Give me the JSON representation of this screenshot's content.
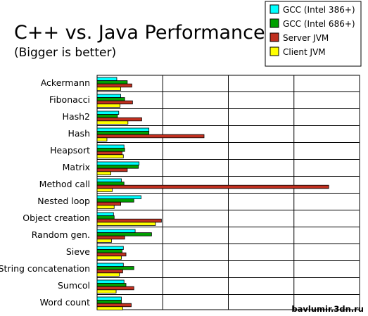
{
  "watermark": "bavlumir.3dn.ru",
  "chart_data": {
    "type": "bar",
    "orientation": "horizontal",
    "title": "C++ vs. Java Performance",
    "subtitle": "(Bigger is better)",
    "xlim": [
      0,
      4
    ],
    "grid": true,
    "legend_position": "top-right",
    "categories": [
      "Ackermann",
      "Fibonacci",
      "Hash2",
      "Hash",
      "Heapsort",
      "Matrix",
      "Method call",
      "Nested loop",
      "Object creation",
      "Random gen.",
      "Sieve",
      "String concatenation",
      "Sumcol",
      "Word count"
    ],
    "series": [
      {
        "name": "GCC (Intel 386+)",
        "color": "#00ffff",
        "values": [
          0.3,
          0.36,
          0.33,
          0.79,
          0.41,
          0.64,
          0.37,
          0.67,
          0.25,
          0.58,
          0.4,
          0.4,
          0.41,
          0.37
        ]
      },
      {
        "name": "GCC (Intel 686+)",
        "color": "#00a000",
        "values": [
          0.46,
          0.42,
          0.31,
          0.79,
          0.42,
          0.63,
          0.41,
          0.56,
          0.26,
          0.83,
          0.38,
          0.56,
          0.44,
          0.37
        ]
      },
      {
        "name": "Server JVM",
        "color": "#c03020",
        "values": [
          0.53,
          0.54,
          0.68,
          1.63,
          0.38,
          0.46,
          3.53,
          0.36,
          0.98,
          0.42,
          0.44,
          0.39,
          0.56,
          0.52
        ]
      },
      {
        "name": "Client JVM",
        "color": "#ffff00",
        "values": [
          0.36,
          0.35,
          0.47,
          0.15,
          0.4,
          0.21,
          0.23,
          0.26,
          0.89,
          0.22,
          0.37,
          0.34,
          0.29,
          0.39
        ]
      }
    ]
  }
}
